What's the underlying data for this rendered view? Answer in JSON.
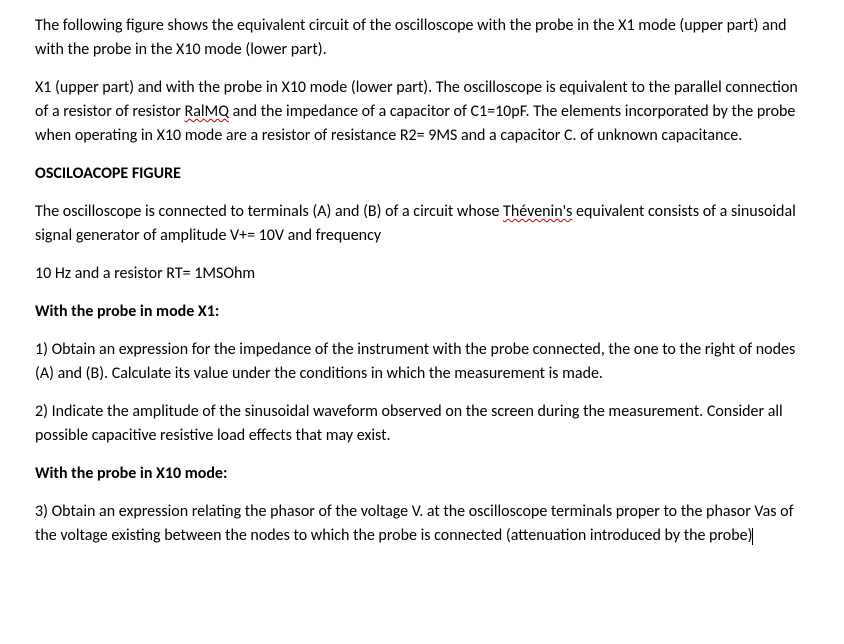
{
  "doc": {
    "p1": "The following figure shows the equivalent circuit of the oscilloscope with the probe in the X1 mode (upper part) and with the probe in the X10 mode (lower part).",
    "p2_a": "X1 (upper part) and with the probe in X10 mode (lower part). The oscilloscope is equivalent to the parallel connection of a resistor of resistor ",
    "p2_spell": "RalMQ",
    "p2_b": " and the impedance of a capacitor of C1=10pF. The elements incorporated by the probe when operating in X10 mode are a resistor of resistance R2= 9MS and a capacitor C. of unknown capacitance.",
    "h1": "OSCILOACOPE FIGURE",
    "p3_a": "The oscilloscope is connected to terminals (A) and (B) of a circuit whose ",
    "p3_spell": "Thévenin's",
    "p3_b": " equivalent consists of a sinusoidal signal generator of amplitude V+= 10V and frequency",
    "p4": "10 Hz and a resistor RT= 1MSOhm",
    "h2": "With the probe in mode X1:",
    "q1": "1) Obtain an expression for the impedance of the instrument with the probe connected, the one to the right of nodes (A) and (B). Calculate its value under the conditions in which the measurement is made.",
    "q2": "2) Indicate the amplitude of the sinusoidal waveform observed on the screen during the measurement. Consider all possible capacitive resistive load effects that may exist.",
    "h3": "With the probe in X10 mode:",
    "q3": "3) Obtain an expression relating the phasor of the voltage V. at the oscilloscope terminals proper to the phasor Vas of the voltage existing between the nodes to which the probe is connected (attenuation introduced by the probe)"
  },
  "style": {
    "font_family": "Calibri",
    "font_size_pt": 12,
    "text_color": "#000000",
    "background_color": "#ffffff",
    "squiggle_color": "#c00000"
  }
}
